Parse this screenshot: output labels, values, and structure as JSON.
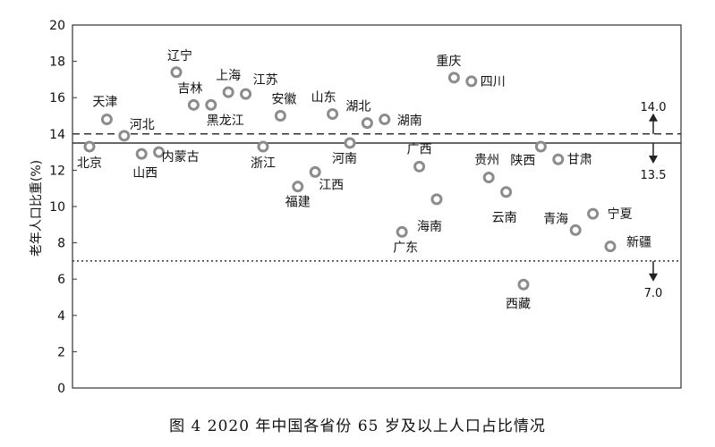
{
  "caption": "图 4   2020 年中国各省份 65 岁及以上人口占比情况",
  "chart_data": {
    "type": "scatter",
    "title": "",
    "xlabel": "",
    "ylabel": "老年人口比重(%)",
    "ylim": [
      0,
      20
    ],
    "yticks": [
      0,
      2,
      4,
      6,
      8,
      10,
      12,
      14,
      16,
      18,
      20
    ],
    "grid": false,
    "points": [
      {
        "name": "北京",
        "y": 13.3
      },
      {
        "name": "天津",
        "y": 14.8
      },
      {
        "name": "河北",
        "y": 13.9
      },
      {
        "name": "山西",
        "y": 12.9
      },
      {
        "name": "内蒙古",
        "y": 13.0
      },
      {
        "name": "辽宁",
        "y": 17.4
      },
      {
        "name": "吉林",
        "y": 15.6
      },
      {
        "name": "黑龙江",
        "y": 15.6
      },
      {
        "name": "上海",
        "y": 16.3
      },
      {
        "name": "江苏",
        "y": 16.2
      },
      {
        "name": "浙江",
        "y": 13.3
      },
      {
        "name": "安徽",
        "y": 15.0
      },
      {
        "name": "福建",
        "y": 11.1
      },
      {
        "name": "江西",
        "y": 11.9
      },
      {
        "name": "山东",
        "y": 15.1
      },
      {
        "name": "河南",
        "y": 13.5
      },
      {
        "name": "湖北",
        "y": 14.6
      },
      {
        "name": "湖南",
        "y": 14.8
      },
      {
        "name": "广东",
        "y": 8.6
      },
      {
        "name": "广西",
        "y": 12.2
      },
      {
        "name": "海南",
        "y": 10.4
      },
      {
        "name": "重庆",
        "y": 17.1
      },
      {
        "name": "四川",
        "y": 16.9
      },
      {
        "name": "贵州",
        "y": 11.6
      },
      {
        "name": "云南",
        "y": 10.8
      },
      {
        "name": "西藏",
        "y": 5.7
      },
      {
        "name": "陕西",
        "y": 13.3
      },
      {
        "name": "甘肃",
        "y": 12.6
      },
      {
        "name": "青海",
        "y": 8.7
      },
      {
        "name": "宁夏",
        "y": 9.6
      },
      {
        "name": "新疆",
        "y": 7.8
      }
    ],
    "reference_lines": [
      {
        "value": 14.0,
        "label": "14.0",
        "style": "dashed",
        "arrow": "up"
      },
      {
        "value": 13.5,
        "label": "13.5",
        "style": "solid",
        "arrow": "down"
      },
      {
        "value": 7.0,
        "label": "7.0",
        "style": "dotted",
        "arrow": "down"
      }
    ]
  }
}
